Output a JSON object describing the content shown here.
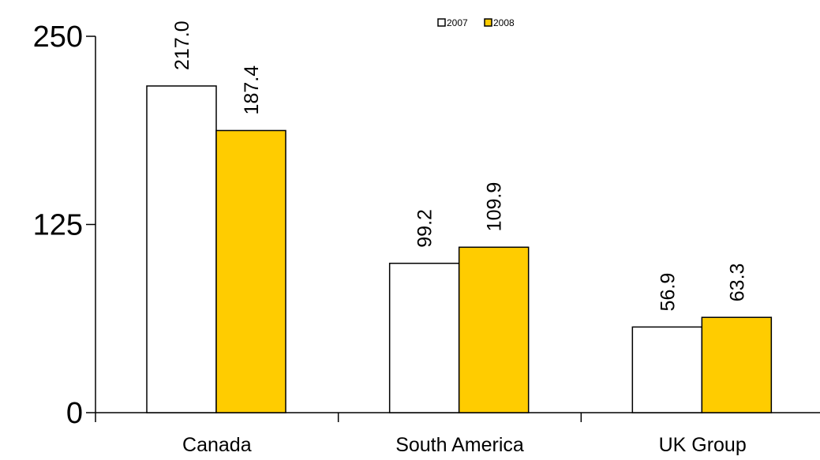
{
  "chart_data": {
    "type": "bar",
    "categories": [
      "Canada",
      "South America",
      "UK Group"
    ],
    "series": [
      {
        "name": "2007",
        "values": [
          217.0,
          99.2,
          56.9
        ],
        "value_labels": [
          "217.0",
          "99.2",
          "56.9"
        ],
        "color": "#FFFFFF"
      },
      {
        "name": "2008",
        "values": [
          187.4,
          109.9,
          63.3
        ],
        "value_labels": [
          "187.4",
          "109.9",
          "63.3"
        ],
        "color": "#FFCC00"
      }
    ],
    "ylim": [
      0,
      250
    ],
    "yticks": [
      0,
      125,
      250
    ],
    "ytick_labels": [
      "0",
      "125",
      "250"
    ],
    "grid": false,
    "legend_position": "top-center",
    "title": "",
    "xlabel": "",
    "ylabel": ""
  }
}
